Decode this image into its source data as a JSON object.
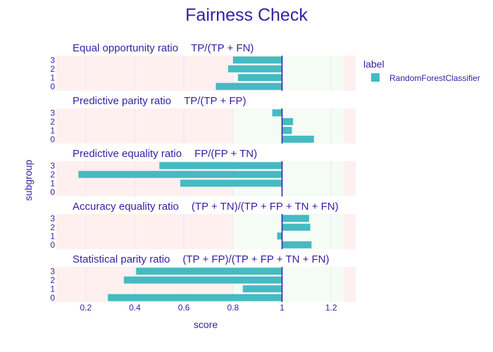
{
  "chart_data": {
    "type": "bar",
    "title": "Fairness Check",
    "xlabel": "score",
    "ylabel": "subgroup",
    "xlim": [
      0.08,
      1.3
    ],
    "x_ticks": [
      "0.2",
      "0.4",
      "0.6",
      "0.8",
      "1",
      "1.2"
    ],
    "subgroups": [
      "0",
      "1",
      "2",
      "3"
    ],
    "reference_value": 1,
    "acceptable_range": [
      0.8,
      1.25
    ],
    "legend": {
      "title": "label",
      "placement": "right",
      "entries": [
        {
          "name": "RandomForestClassifier",
          "color": "#46bac2"
        }
      ]
    },
    "colors": {
      "bar": "#46bac2",
      "reference_line": "#371ea3",
      "fair_zone": "#f5fcf5",
      "unfair_zone": "#fff0f0",
      "text": "#371ea3"
    },
    "panels": [
      {
        "metric": "Equal opportunity ratio",
        "formula": "TP/(TP + FN)",
        "series": [
          {
            "name": "RandomForestClassifier",
            "values": {
              "0": 0.73,
              "1": 0.82,
              "2": 0.78,
              "3": 0.8
            }
          }
        ]
      },
      {
        "metric": "Predictive parity ratio",
        "formula": "TP/(TP + FP)",
        "series": [
          {
            "name": "RandomForestClassifier",
            "values": {
              "0": 1.13,
              "1": 1.04,
              "2": 1.045,
              "3": 0.96
            }
          }
        ]
      },
      {
        "metric": "Predictive equality ratio",
        "formula": "FP/(FP + TN)",
        "series": [
          {
            "name": "RandomForestClassifier",
            "values": {
              "0": 1.0,
              "1": 0.585,
              "2": 0.17,
              "3": 0.5
            }
          }
        ]
      },
      {
        "metric": "Accuracy equality ratio",
        "formula": "(TP + TN)/(TP + FP + TN + FN)",
        "series": [
          {
            "name": "RandomForestClassifier",
            "values": {
              "0": 1.12,
              "1": 0.98,
              "2": 1.115,
              "3": 1.11
            }
          }
        ]
      },
      {
        "metric": "Statistical parity ratio",
        "formula": "(TP + FP)/(TP + FP + TN + FN)",
        "series": [
          {
            "name": "RandomForestClassifier",
            "values": {
              "0": 0.29,
              "1": 0.84,
              "2": 0.355,
              "3": 0.405
            }
          }
        ]
      }
    ]
  }
}
